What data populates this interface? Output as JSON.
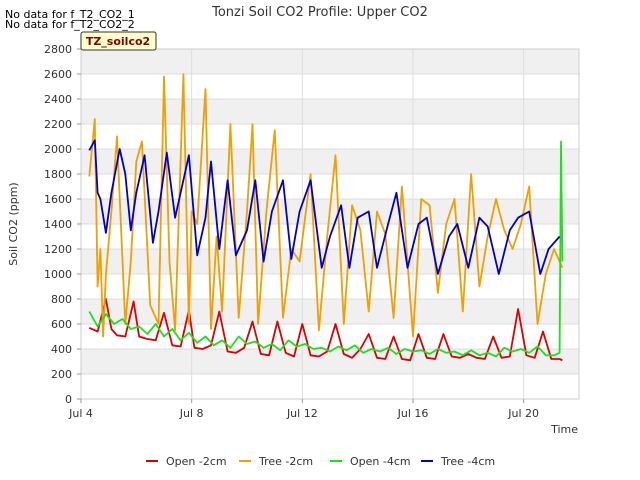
{
  "chart_data": {
    "type": "line",
    "title": "Tonzi Soil CO2 Profile: Upper CO2",
    "xlabel": "Time",
    "ylabel": "Soil CO2 (ppm)",
    "ylim": [
      0,
      2800
    ],
    "yticks": [
      0,
      200,
      400,
      600,
      800,
      1000,
      1200,
      1400,
      1600,
      1800,
      2000,
      2200,
      2400,
      2600,
      2800
    ],
    "xlim": [
      "2024-07-04",
      "2024-07-22"
    ],
    "xticks": [
      {
        "value": 4,
        "label": "Jul 4"
      },
      {
        "value": 8,
        "label": "Jul 8"
      },
      {
        "value": 12,
        "label": "Jul 12"
      },
      {
        "value": 16,
        "label": "Jul 16"
      },
      {
        "value": 20,
        "label": "Jul 20"
      }
    ],
    "grid": true,
    "banded_background": true,
    "legend_position": "bottom",
    "series": [
      {
        "name": "Open -2cm",
        "color": "#dd0000",
        "x": [
          4.3,
          4.6,
          4.9,
          5.1,
          5.3,
          5.6,
          5.9,
          6.1,
          6.4,
          6.7,
          7.0,
          7.3,
          7.6,
          7.9,
          8.1,
          8.4,
          8.7,
          9.0,
          9.3,
          9.6,
          9.9,
          10.2,
          10.5,
          10.8,
          11.1,
          11.4,
          11.7,
          12.0,
          12.3,
          12.6,
          12.9,
          13.2,
          13.5,
          13.8,
          14.1,
          14.4,
          14.7,
          15.0,
          15.3,
          15.6,
          15.9,
          16.2,
          16.5,
          16.8,
          17.1,
          17.4,
          17.7,
          18.0,
          18.3,
          18.6,
          18.9,
          19.2,
          19.5,
          19.8,
          20.1,
          20.4,
          20.7,
          21.0,
          21.3,
          21.4
        ],
        "values": [
          570,
          540,
          800,
          560,
          510,
          500,
          780,
          500,
          480,
          470,
          690,
          430,
          420,
          710,
          410,
          400,
          430,
          700,
          380,
          370,
          410,
          620,
          360,
          350,
          620,
          370,
          340,
          600,
          350,
          340,
          380,
          600,
          360,
          330,
          400,
          520,
          330,
          320,
          500,
          320,
          310,
          520,
          330,
          320,
          520,
          340,
          330,
          360,
          330,
          320,
          500,
          330,
          340,
          720,
          350,
          330,
          540,
          320,
          320,
          310
        ]
      },
      {
        "name": "Tree -2cm",
        "color": "#f0a000",
        "x": [
          4.3,
          4.5,
          4.6,
          4.7,
          4.8,
          4.9,
          5.1,
          5.3,
          5.6,
          5.8,
          6.0,
          6.2,
          6.5,
          6.8,
          7.0,
          7.2,
          7.4,
          7.7,
          7.9,
          8.0,
          8.2,
          8.5,
          8.7,
          8.9,
          9.1,
          9.4,
          9.7,
          10.0,
          10.2,
          10.4,
          10.7,
          11.0,
          11.3,
          11.6,
          11.9,
          12.3,
          12.6,
          12.9,
          13.2,
          13.5,
          13.8,
          14.1,
          14.4,
          14.7,
          15.0,
          15.3,
          15.6,
          16.0,
          16.3,
          16.6,
          16.9,
          17.2,
          17.5,
          17.8,
          18.1,
          18.4,
          18.7,
          19.0,
          19.3,
          19.6,
          19.9,
          20.2,
          20.5,
          20.8,
          21.1,
          21.4
        ],
        "values": [
          1780,
          2240,
          900,
          1200,
          500,
          1000,
          1500,
          2100,
          600,
          1100,
          1900,
          2060,
          750,
          600,
          2580,
          1100,
          550,
          2600,
          600,
          1500,
          1400,
          2480,
          560,
          1300,
          700,
          2200,
          650,
          1500,
          2200,
          600,
          1500,
          2150,
          650,
          1200,
          1100,
          1800,
          550,
          1300,
          1950,
          600,
          1550,
          1350,
          700,
          1500,
          1320,
          650,
          1700,
          500,
          1600,
          1550,
          850,
          1400,
          1600,
          700,
          1800,
          900,
          1300,
          1600,
          1350,
          1200,
          1400,
          1700,
          600,
          1000,
          1200,
          1050
        ]
      },
      {
        "name": "Open -4cm",
        "color": "#22dd22",
        "x": [
          4.3,
          4.6,
          4.9,
          5.2,
          5.5,
          5.8,
          6.1,
          6.4,
          6.7,
          7.0,
          7.3,
          7.6,
          7.9,
          8.2,
          8.5,
          8.8,
          9.1,
          9.4,
          9.7,
          10.0,
          10.3,
          10.6,
          10.9,
          11.2,
          11.5,
          11.8,
          12.1,
          12.4,
          12.7,
          13.0,
          13.3,
          13.6,
          13.9,
          14.2,
          14.5,
          14.8,
          15.1,
          15.4,
          15.7,
          16.0,
          16.3,
          16.6,
          16.9,
          17.2,
          17.5,
          17.8,
          18.1,
          18.4,
          18.7,
          19.0,
          19.3,
          19.6,
          19.9,
          20.2,
          20.5,
          20.8,
          21.1,
          21.3,
          21.35,
          21.4
        ],
        "values": [
          700,
          580,
          680,
          600,
          640,
          560,
          580,
          520,
          600,
          500,
          560,
          470,
          530,
          450,
          500,
          430,
          470,
          410,
          500,
          440,
          460,
          410,
          440,
          390,
          470,
          420,
          440,
          400,
          410,
          380,
          420,
          390,
          430,
          370,
          400,
          380,
          410,
          360,
          400,
          380,
          390,
          360,
          400,
          370,
          380,
          350,
          390,
          350,
          370,
          340,
          410,
          380,
          400,
          370,
          420,
          350,
          350,
          370,
          2060,
          1100
        ]
      },
      {
        "name": "Tree -4cm",
        "color": "#0000cc",
        "x": [
          4.3,
          4.5,
          4.6,
          4.7,
          4.9,
          5.1,
          5.4,
          5.6,
          5.8,
          6.0,
          6.3,
          6.6,
          6.8,
          7.1,
          7.4,
          7.6,
          7.9,
          8.2,
          8.5,
          8.7,
          9.0,
          9.3,
          9.6,
          10.0,
          10.3,
          10.6,
          10.9,
          11.3,
          11.6,
          11.9,
          12.3,
          12.7,
          13.0,
          13.4,
          13.7,
          14.0,
          14.4,
          14.7,
          15.1,
          15.4,
          15.8,
          16.2,
          16.5,
          16.9,
          17.3,
          17.6,
          18.0,
          18.4,
          18.7,
          19.1,
          19.5,
          19.8,
          20.2,
          20.6,
          20.9,
          21.3
        ],
        "values": [
          1990,
          2070,
          1650,
          1600,
          1330,
          1650,
          2000,
          1800,
          1350,
          1650,
          1950,
          1250,
          1500,
          1970,
          1450,
          1650,
          1950,
          1150,
          1450,
          1900,
          1200,
          1750,
          1150,
          1350,
          1750,
          1100,
          1500,
          1750,
          1120,
          1500,
          1750,
          1050,
          1300,
          1550,
          1050,
          1450,
          1500,
          1050,
          1400,
          1650,
          1050,
          1400,
          1450,
          1000,
          1300,
          1400,
          1050,
          1450,
          1380,
          1000,
          1350,
          1450,
          1500,
          1000,
          1200,
          1300
        ]
      }
    ]
  },
  "notes": [
    "No data for f_T2_CO2_1",
    "No data for f_T2_CO2_2"
  ],
  "tag_label": "TZ_soilco2"
}
